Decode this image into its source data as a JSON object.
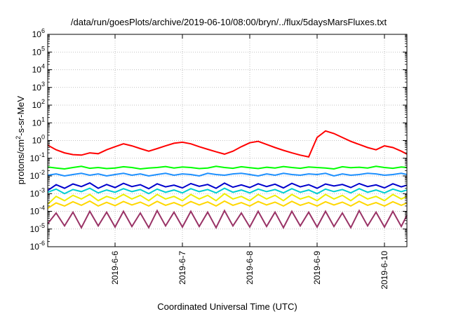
{
  "chart_data": {
    "type": "line",
    "title": "/data/run/goesPlots/archive/2019-06-10/08:00/bryn/../flux/5daysMarsFluxes.txt",
    "xlabel": "Coordinated Universal Time (UTC)",
    "ylabel": "protons/cm²-s-sr-MeV",
    "ylabel_parts": {
      "pre": "protons/cm",
      "sup": "2",
      "post": "-s-sr-MeV"
    },
    "yscale": "log",
    "ylim": [
      1e-06,
      1000000.0
    ],
    "xlim": [
      "2019-06-05T00:00",
      "2019-06-10T08:00"
    ],
    "grid": true,
    "x_ticks": [
      "2019-6-6",
      "2019-6-7",
      "2019-6-8",
      "2019-6-9",
      "2019-6-10"
    ],
    "y_ticks": [
      {
        "base": "10",
        "exp": "-6"
      },
      {
        "base": "10",
        "exp": "-5"
      },
      {
        "base": "10",
        "exp": "-4"
      },
      {
        "base": "10",
        "exp": "-3"
      },
      {
        "base": "10",
        "exp": "-2"
      },
      {
        "base": "10",
        "exp": "-1"
      },
      {
        "base": "10",
        "exp": "0"
      },
      {
        "base": "10",
        "exp": "1"
      },
      {
        "base": "10",
        "exp": "2"
      },
      {
        "base": "10",
        "exp": "3"
      },
      {
        "base": "10",
        "exp": "4"
      },
      {
        "base": "10",
        "exp": "5"
      },
      {
        "base": "10",
        "exp": "6"
      }
    ],
    "x": [
      "2019-06-05T00:00",
      "2019-06-05T03:00",
      "2019-06-05T06:00",
      "2019-06-05T09:00",
      "2019-06-05T12:00",
      "2019-06-05T15:00",
      "2019-06-05T18:00",
      "2019-06-05T21:00",
      "2019-06-06T00:00",
      "2019-06-06T03:00",
      "2019-06-06T06:00",
      "2019-06-06T09:00",
      "2019-06-06T12:00",
      "2019-06-06T15:00",
      "2019-06-06T18:00",
      "2019-06-06T21:00",
      "2019-06-07T00:00",
      "2019-06-07T03:00",
      "2019-06-07T06:00",
      "2019-06-07T09:00",
      "2019-06-07T12:00",
      "2019-06-07T15:00",
      "2019-06-07T18:00",
      "2019-06-07T21:00",
      "2019-06-08T00:00",
      "2019-06-08T03:00",
      "2019-06-08T06:00",
      "2019-06-08T09:00",
      "2019-06-08T12:00",
      "2019-06-08T15:00",
      "2019-06-08T18:00",
      "2019-06-08T21:00",
      "2019-06-09T00:00",
      "2019-06-09T03:00",
      "2019-06-09T06:00",
      "2019-06-09T09:00",
      "2019-06-09T12:00",
      "2019-06-09T15:00",
      "2019-06-09T18:00",
      "2019-06-09T21:00",
      "2019-06-10T00:00",
      "2019-06-10T03:00",
      "2019-06-10T06:00",
      "2019-06-10T08:00"
    ],
    "series": [
      {
        "color": "#ff0000",
        "values": [
          0.55,
          0.3,
          0.2,
          0.16,
          0.15,
          0.2,
          0.18,
          0.3,
          0.45,
          0.65,
          0.5,
          0.35,
          0.25,
          0.35,
          0.5,
          0.7,
          0.8,
          0.65,
          0.45,
          0.32,
          0.23,
          0.17,
          0.25,
          0.45,
          0.75,
          0.9,
          0.6,
          0.4,
          0.28,
          0.2,
          0.15,
          0.12,
          1.5,
          3.5,
          2.5,
          1.5,
          0.9,
          0.6,
          0.4,
          0.3,
          0.5,
          0.4,
          0.25,
          0.17
        ]
      },
      {
        "color": "#00ff00",
        "values": [
          0.032,
          0.028,
          0.025,
          0.03,
          0.035,
          0.027,
          0.03,
          0.026,
          0.028,
          0.033,
          0.03,
          0.025,
          0.028,
          0.03,
          0.034,
          0.028,
          0.032,
          0.03,
          0.026,
          0.028,
          0.035,
          0.03,
          0.027,
          0.033,
          0.029,
          0.026,
          0.031,
          0.028,
          0.034,
          0.03,
          0.027,
          0.032,
          0.03,
          0.028,
          0.025,
          0.033,
          0.029,
          0.031,
          0.028,
          0.035,
          0.03,
          0.027,
          0.032,
          0.03
        ]
      },
      {
        "color": "#1e90ff",
        "values": [
          0.011,
          0.013,
          0.01,
          0.012,
          0.014,
          0.011,
          0.013,
          0.01,
          0.012,
          0.014,
          0.011,
          0.013,
          0.01,
          0.012,
          0.014,
          0.011,
          0.013,
          0.012,
          0.01,
          0.014,
          0.012,
          0.011,
          0.013,
          0.014,
          0.012,
          0.01,
          0.013,
          0.011,
          0.014,
          0.012,
          0.011,
          0.013,
          0.012,
          0.014,
          0.01,
          0.013,
          0.011,
          0.012,
          0.014,
          0.013,
          0.011,
          0.012,
          0.014,
          0.012
        ]
      },
      {
        "color": "#0000cd",
        "values": [
          0.0015,
          0.0032,
          0.002,
          0.0035,
          0.0025,
          0.004,
          0.002,
          0.0033,
          0.0022,
          0.0038,
          0.0025,
          0.0032,
          0.0019,
          0.0036,
          0.0024,
          0.003,
          0.0021,
          0.0037,
          0.0026,
          0.0033,
          0.002,
          0.0039,
          0.0023,
          0.0031,
          0.0022,
          0.0036,
          0.0025,
          0.0034,
          0.0021,
          0.0038,
          0.0024,
          0.0032,
          0.002,
          0.0035,
          0.0027,
          0.0033,
          0.0022,
          0.0037,
          0.0025,
          0.0031,
          0.0021,
          0.0036,
          0.0024,
          0.003
        ]
      },
      {
        "color": "#00ced1",
        "values": [
          0.0012,
          0.0018,
          0.001,
          0.0017,
          0.0013,
          0.002,
          0.0011,
          0.0016,
          0.0012,
          0.0019,
          0.0013,
          0.0017,
          0.001,
          0.0018,
          0.0012,
          0.0016,
          0.0011,
          0.0019,
          0.0013,
          0.0017,
          0.0011,
          0.002,
          0.0012,
          0.0016,
          0.0011,
          0.0018,
          0.0013,
          0.0017,
          0.0011,
          0.0019,
          0.0012,
          0.0016,
          0.001,
          0.0018,
          0.0013,
          0.0017,
          0.0011,
          0.0019,
          0.0012,
          0.0016,
          0.0011,
          0.0018,
          0.0013,
          0.0016
        ]
      },
      {
        "color": "#eeee00",
        "values": [
          0.00025,
          0.0007,
          0.0004,
          0.0008,
          0.0005,
          0.0009,
          0.0004,
          0.0007,
          0.0005,
          0.0009,
          0.0005,
          0.0008,
          0.0004,
          0.0009,
          0.0005,
          0.0007,
          0.0004,
          0.0009,
          0.0005,
          0.0008,
          0.0004,
          0.001,
          0.0005,
          0.0007,
          0.0004,
          0.0009,
          0.0005,
          0.0008,
          0.0004,
          0.0009,
          0.0005,
          0.0007,
          0.0004,
          0.0009,
          0.0005,
          0.0008,
          0.0004,
          0.0009,
          0.0005,
          0.0007,
          0.0004,
          0.0009,
          0.0005,
          0.0007
        ]
      },
      {
        "color": "#ffd700",
        "values": [
          0.00015,
          0.0003,
          0.0002,
          0.00035,
          0.00022,
          0.00038,
          0.0002,
          0.00032,
          0.00021,
          0.00036,
          0.00023,
          0.00033,
          0.0002,
          0.00037,
          0.00022,
          0.00031,
          0.0002,
          0.00036,
          0.00023,
          0.00034,
          0.0002,
          0.00038,
          0.00022,
          0.00031,
          0.0002,
          0.00036,
          0.00023,
          0.00033,
          0.0002,
          0.00037,
          0.00022,
          0.00031,
          0.0002,
          0.00035,
          0.00023,
          0.00033,
          0.0002,
          0.00037,
          0.00022,
          0.00031,
          0.0002,
          0.00035,
          0.00022,
          0.0003
        ]
      },
      {
        "color": "#993366",
        "values": [
          2e-05,
          8e-05,
          1.5e-05,
          9e-05,
          1.2e-05,
          0.0001,
          1.5e-05,
          9e-05,
          1.3e-05,
          0.0001,
          1.4e-05,
          8e-05,
          1.2e-05,
          0.00011,
          1.5e-05,
          9e-05,
          1.3e-05,
          0.0001,
          1.4e-05,
          9e-05,
          1.2e-05,
          0.00011,
          1.5e-05,
          8e-05,
          1.3e-05,
          0.0001,
          1.4e-05,
          9e-05,
          1.2e-05,
          0.0001,
          1.5e-05,
          9e-05,
          1.3e-05,
          0.0001,
          1.4e-05,
          8e-05,
          1.2e-05,
          0.00011,
          1.5e-05,
          9e-05,
          1.3e-05,
          0.0001,
          1.4e-05,
          6e-05
        ]
      }
    ]
  }
}
